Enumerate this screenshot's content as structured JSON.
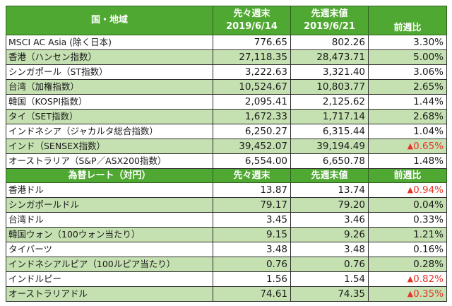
{
  "colors": {
    "header_bg": "#4fa832",
    "header_text": "#ffffff",
    "alt_row_bg": "#c5e1b1",
    "negative": "#e5352a"
  },
  "indices_section": {
    "headers": {
      "region": "国・地域",
      "prev_prev_week_label": "先々週末",
      "prev_prev_week_date": "2019/6/14",
      "prev_week_label": "先週末値",
      "prev_week_date": "2019/6/21",
      "change": "前週比"
    },
    "rows": [
      {
        "name": "MSCI AC Asia (除く日本)",
        "prev2": "776.65",
        "prev1": "802.26",
        "change": "3.30%",
        "negative": false
      },
      {
        "name": "香港（ハンセン指数）",
        "prev2": "27,118.35",
        "prev1": "28,473.71",
        "change": "5.00%",
        "negative": false
      },
      {
        "name": "シンガポール（ST指数）",
        "prev2": "3,222.63",
        "prev1": "3,321.40",
        "change": "3.06%",
        "negative": false
      },
      {
        "name": "台湾（加権指数）",
        "prev2": "10,524.67",
        "prev1": "10,803.77",
        "change": "2.65%",
        "negative": false
      },
      {
        "name": "韓国（KOSPI指数）",
        "prev2": "2,095.41",
        "prev1": "2,125.62",
        "change": "1.44%",
        "negative": false
      },
      {
        "name": "タイ（SET指数）",
        "prev2": "1,672.33",
        "prev1": "1,717.14",
        "change": "2.68%",
        "negative": false
      },
      {
        "name": "インドネシア（ジャカルタ総合指数）",
        "prev2": "6,250.27",
        "prev1": "6,315.44",
        "change": "1.04%",
        "negative": false
      },
      {
        "name": "インド（SENSEX指数）",
        "prev2": "39,452.07",
        "prev1": "39,194.49",
        "change": "0.65%",
        "negative": true
      },
      {
        "name": "オーストラリア（S&P／ASX200指数）",
        "prev2": "6,554.00",
        "prev1": "6,650.78",
        "change": "1.48%",
        "negative": false
      }
    ]
  },
  "fx_section": {
    "headers": {
      "title": "為替レート（対円）",
      "prev_prev_week_label": "先々週末",
      "prev_week_label": "先週末値",
      "change": "前週比"
    },
    "rows": [
      {
        "name": "香港ドル",
        "prev2": "13.87",
        "prev1": "13.74",
        "change": "0.94%",
        "negative": true
      },
      {
        "name": "シンガポールドル",
        "prev2": "79.17",
        "prev1": "79.20",
        "change": "0.04%",
        "negative": false
      },
      {
        "name": "台湾ドル",
        "prev2": "3.45",
        "prev1": "3.46",
        "change": "0.33%",
        "negative": false
      },
      {
        "name": "韓国ウォン（100ウォン当たり）",
        "prev2": "9.15",
        "prev1": "9.26",
        "change": "1.21%",
        "negative": false
      },
      {
        "name": "タイバーツ",
        "prev2": "3.48",
        "prev1": "3.48",
        "change": "0.16%",
        "negative": false
      },
      {
        "name": "インドネシアルピア（100ルピア当たり）",
        "prev2": "0.76",
        "prev1": "0.76",
        "change": "0.28%",
        "negative": false
      },
      {
        "name": "インドルピー",
        "prev2": "1.56",
        "prev1": "1.54",
        "change": "0.82%",
        "negative": true
      },
      {
        "name": "オーストラリアドル",
        "prev2": "74.61",
        "prev1": "74.35",
        "change": "0.35%",
        "negative": true
      }
    ]
  },
  "negative_marker": "▲"
}
